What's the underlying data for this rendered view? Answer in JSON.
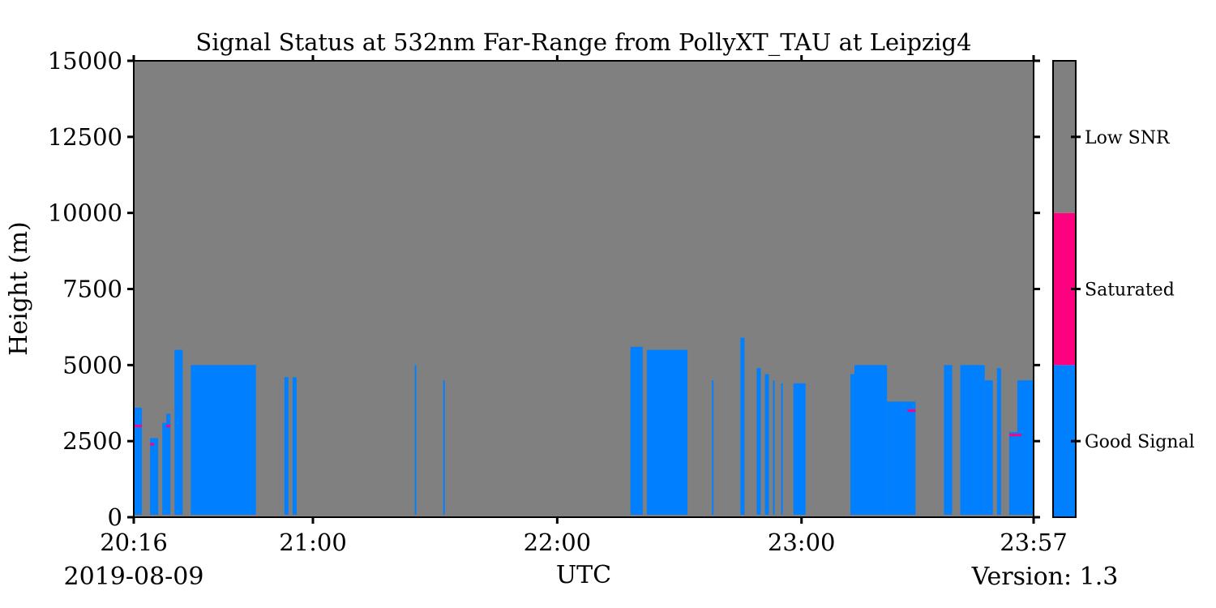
{
  "chart_data": {
    "type": "heatmap",
    "title": "Signal Status at 532nm Far-Range from PollyXT_TAU at Leipzig4",
    "xlabel": "UTC",
    "ylabel": "Height (m)",
    "date": "2019-08-09",
    "version_text": "Version: 1.3",
    "x_range": [
      "20:16",
      "23:57"
    ],
    "ylim": [
      0,
      15000
    ],
    "x_ticks": [
      "20:16",
      "21:00",
      "22:00",
      "23:00",
      "23:57"
    ],
    "y_ticks": [
      0,
      2500,
      5000,
      7500,
      10000,
      12500,
      15000
    ],
    "colorbar": {
      "labels": [
        "Good Signal",
        "Saturated",
        "Low SNR"
      ],
      "colors": [
        "#0080ff",
        "#ff0080",
        "#808080"
      ]
    },
    "background_status": "Low SNR",
    "good_signal_columns": [
      {
        "start": "20:16",
        "end": "20:18",
        "top_m": 3600
      },
      {
        "start": "20:20",
        "end": "20:22",
        "top_m": 2600
      },
      {
        "start": "20:23",
        "end": "20:24",
        "top_m": 3100
      },
      {
        "start": "20:24",
        "end": "20:25",
        "top_m": 3400
      },
      {
        "start": "20:26",
        "end": "20:28",
        "top_m": 5500
      },
      {
        "start": "20:30",
        "end": "20:46",
        "top_m": 5000
      },
      {
        "start": "20:53",
        "end": "20:54",
        "top_m": 4600
      },
      {
        "start": "20:55",
        "end": "20:56",
        "top_m": 4600
      },
      {
        "start": "21:25",
        "end": "21:25",
        "top_m": 5000
      },
      {
        "start": "21:32",
        "end": "21:32",
        "top_m": 4500
      },
      {
        "start": "22:18",
        "end": "22:21",
        "top_m": 5600
      },
      {
        "start": "22:22",
        "end": "22:32",
        "top_m": 5500
      },
      {
        "start": "22:38",
        "end": "22:38",
        "top_m": 4500
      },
      {
        "start": "22:45",
        "end": "22:46",
        "top_m": 5900
      },
      {
        "start": "22:49",
        "end": "22:50",
        "top_m": 4900
      },
      {
        "start": "22:51",
        "end": "22:52",
        "top_m": 4700
      },
      {
        "start": "22:53",
        "end": "22:53",
        "top_m": 4500
      },
      {
        "start": "22:55",
        "end": "22:55",
        "top_m": 4400
      },
      {
        "start": "22:58",
        "end": "23:01",
        "top_m": 4400
      },
      {
        "start": "23:12",
        "end": "23:13",
        "top_m": 4700
      },
      {
        "start": "23:13",
        "end": "23:21",
        "top_m": 5000
      },
      {
        "start": "23:21",
        "end": "23:28",
        "top_m": 3800
      },
      {
        "start": "23:35",
        "end": "23:37",
        "top_m": 5000
      },
      {
        "start": "23:39",
        "end": "23:45",
        "top_m": 5000
      },
      {
        "start": "23:45",
        "end": "23:47",
        "top_m": 4500
      },
      {
        "start": "23:48",
        "end": "23:49",
        "top_m": 4900
      },
      {
        "start": "23:51",
        "end": "23:53",
        "top_m": 2800
      },
      {
        "start": "23:53",
        "end": "23:57",
        "top_m": 4500
      }
    ],
    "saturated_patches": [
      {
        "start": "20:16",
        "end": "20:18",
        "height_m": 3000
      },
      {
        "start": "20:20",
        "end": "20:21",
        "height_m": 2400
      },
      {
        "start": "20:24",
        "end": "20:25",
        "height_m": 3000
      },
      {
        "start": "23:26",
        "end": "23:28",
        "height_m": 3500
      },
      {
        "start": "23:51",
        "end": "23:54",
        "height_m": 2700
      }
    ]
  }
}
